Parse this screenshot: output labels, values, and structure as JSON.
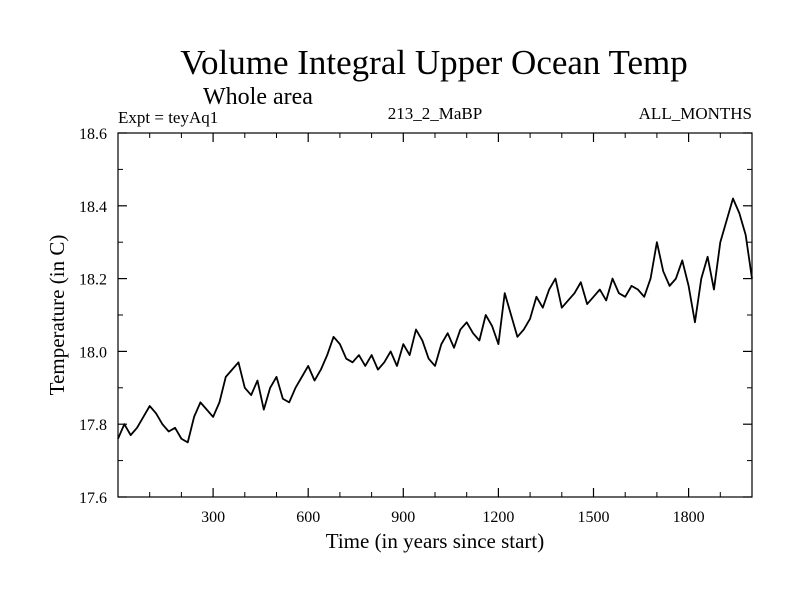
{
  "chart_data": {
    "type": "line",
    "title": "Volume Integral Upper Ocean Temp",
    "subtitle": "Whole area",
    "left_note": "Expt = teyAq1",
    "center_note": "213_2_MaBP",
    "right_note": "ALL_MONTHS",
    "xlabel": "Time (in years since start)",
    "ylabel": "Temperature (in C)",
    "xlim": [
      0,
      2000
    ],
    "ylim": [
      17.6,
      18.6
    ],
    "xticks": [
      300,
      600,
      900,
      1200,
      1500,
      1800
    ],
    "xtick_labels": [
      "300",
      "600",
      "900",
      "1200",
      "1500",
      "1800"
    ],
    "yticks": [
      17.6,
      17.8,
      18.0,
      18.2,
      18.4,
      18.6
    ],
    "ytick_labels": [
      "17.6",
      "17.8",
      "18.0",
      "18.2",
      "18.4",
      "18.6"
    ],
    "series": [
      {
        "name": "teyAq1",
        "x": [
          0,
          20,
          40,
          60,
          80,
          100,
          120,
          140,
          160,
          180,
          200,
          220,
          240,
          260,
          280,
          300,
          320,
          340,
          360,
          380,
          400,
          420,
          440,
          460,
          480,
          500,
          520,
          540,
          560,
          580,
          600,
          620,
          640,
          660,
          680,
          700,
          720,
          740,
          760,
          780,
          800,
          820,
          840,
          860,
          880,
          900,
          920,
          940,
          960,
          980,
          1000,
          1020,
          1040,
          1060,
          1080,
          1100,
          1120,
          1140,
          1160,
          1180,
          1200,
          1220,
          1240,
          1260,
          1280,
          1300,
          1320,
          1340,
          1360,
          1380,
          1400,
          1420,
          1440,
          1460,
          1480,
          1500,
          1520,
          1540,
          1560,
          1580,
          1600,
          1620,
          1640,
          1660,
          1680,
          1700,
          1720,
          1740,
          1760,
          1780,
          1800,
          1820,
          1840,
          1860,
          1880,
          1900,
          1920,
          1940,
          1960,
          1980,
          2000
        ],
        "values": [
          17.76,
          17.8,
          17.77,
          17.79,
          17.82,
          17.85,
          17.83,
          17.8,
          17.78,
          17.79,
          17.76,
          17.75,
          17.82,
          17.86,
          17.84,
          17.82,
          17.86,
          17.93,
          17.95,
          17.97,
          17.9,
          17.88,
          17.92,
          17.84,
          17.9,
          17.93,
          17.87,
          17.86,
          17.9,
          17.93,
          17.96,
          17.92,
          17.95,
          17.99,
          18.04,
          18.02,
          17.98,
          17.97,
          17.99,
          17.96,
          17.99,
          17.95,
          17.97,
          18.0,
          17.96,
          18.02,
          17.99,
          18.06,
          18.03,
          17.98,
          17.96,
          18.02,
          18.05,
          18.01,
          18.06,
          18.08,
          18.05,
          18.03,
          18.1,
          18.07,
          18.02,
          18.16,
          18.1,
          18.04,
          18.06,
          18.09,
          18.15,
          18.12,
          18.17,
          18.2,
          18.12,
          18.14,
          18.16,
          18.19,
          18.13,
          18.15,
          18.17,
          18.14,
          18.2,
          18.16,
          18.15,
          18.18,
          18.17,
          18.15,
          18.2,
          18.3,
          18.22,
          18.18,
          18.2,
          18.25,
          18.18,
          18.08,
          18.2,
          18.26,
          18.17,
          18.3,
          18.36,
          18.42,
          18.38,
          18.32,
          18.2
        ]
      }
    ]
  }
}
